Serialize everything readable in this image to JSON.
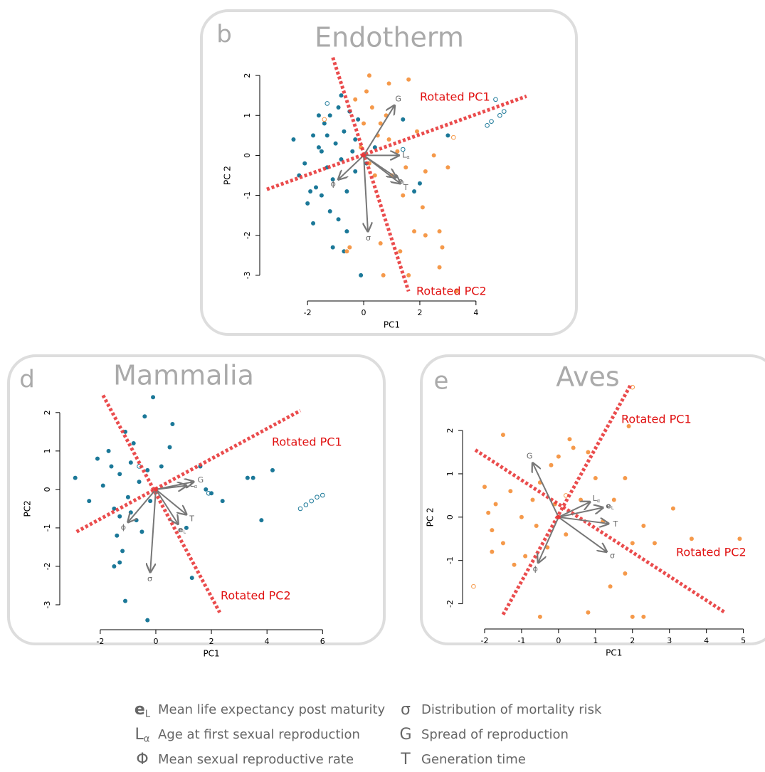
{
  "chart_data": [
    {
      "type": "biplot",
      "panel": "b",
      "title": "Endotherm",
      "xlabel": "PC1",
      "ylabel": "PC 2",
      "xlim": [
        -3.5,
        5.5
      ],
      "ylim": [
        -3.5,
        2.5
      ],
      "xticks": [
        -2,
        0,
        2,
        4
      ],
      "yticks": [
        -3,
        -2,
        -1,
        0,
        1,
        2
      ],
      "series": [
        {
          "color": "#1b7898",
          "filled": true,
          "x": [
            -2.3,
            -2.1,
            -2.0,
            -1.8,
            -1.7,
            -1.6,
            -1.5,
            -1.4,
            -1.3,
            -1.2,
            -1.1,
            -1.0,
            -0.9,
            -0.8,
            -0.7,
            -0.6,
            -0.5,
            -0.4,
            -0.3,
            -0.2,
            -1.9,
            -1.2,
            -0.9,
            -0.6,
            -1.1,
            -0.7,
            -1.5,
            -2.5,
            -0.3,
            0.1,
            0.4,
            1.8,
            1.4,
            -1.8,
            -0.1,
            3.0,
            2.0,
            -1.3,
            -0.8,
            -1.6
          ],
          "y": [
            -0.5,
            -0.2,
            -1.2,
            0.5,
            -0.8,
            0.2,
            -1.0,
            0.8,
            -0.3,
            1.0,
            -0.6,
            0.3,
            1.2,
            -0.1,
            0.6,
            -0.9,
            1.1,
            0.1,
            -0.4,
            0.9,
            -0.9,
            -1.4,
            -1.6,
            -1.9,
            -2.3,
            -2.4,
            0.1,
            0.4,
            0.4,
            -0.2,
            0.2,
            -0.9,
            0.9,
            -1.7,
            -3.0,
            0.5,
            -0.7,
            0.5,
            1.5,
            1.0
          ]
        },
        {
          "color": "#f5994a",
          "filled": true,
          "x": [
            0.1,
            0.3,
            0.6,
            0.9,
            1.2,
            1.5,
            0.2,
            0.5,
            0.8,
            1.0,
            1.4,
            2.1,
            1.8,
            2.2,
            2.7,
            2.8,
            1.3,
            0.6,
            -0.5,
            -0.6,
            0.7,
            1.6,
            2.7,
            3.3,
            0.0,
            -0.3,
            2.5,
            3.0,
            1.9,
            1.6,
            0.2,
            0.9,
            2.2,
            -0.1,
            0.4
          ],
          "y": [
            1.6,
            1.2,
            0.8,
            0.4,
            0.1,
            -0.3,
            -0.2,
            0.5,
            1.0,
            -0.5,
            -1.0,
            -1.3,
            -1.9,
            -2.0,
            -1.9,
            -2.3,
            -2.4,
            -2.2,
            -2.3,
            -2.4,
            -3.0,
            -3.0,
            -2.8,
            -3.4,
            0.8,
            1.4,
            0.0,
            -0.3,
            0.6,
            1.9,
            2.0,
            1.8,
            -0.4,
            0.2,
            -0.5
          ]
        },
        {
          "color": "#1b7898",
          "filled": false,
          "x": [
            4.7,
            5.0,
            4.85,
            4.55,
            4.4,
            1.4,
            -1.3
          ],
          "y": [
            1.4,
            1.1,
            1.0,
            0.85,
            0.75,
            0.15,
            1.3
          ]
        },
        {
          "color": "#f5994a",
          "filled": false,
          "x": [
            3.2,
            -1.4
          ],
          "y": [
            0.45,
            0.9
          ]
        }
      ],
      "arrows": [
        {
          "symbol": "G",
          "x": 1.1,
          "y": 1.25
        },
        {
          "symbol": "L",
          "sub": "α",
          "x": 1.25,
          "y": 0.0
        },
        {
          "symbol": "e",
          "sub": "L",
          "x": 1.15,
          "y": -0.55
        },
        {
          "symbol": "T",
          "x": 1.3,
          "y": -0.7
        },
        {
          "symbol": "ϕ",
          "x": -0.9,
          "y": -0.6
        },
        {
          "symbol": "σ",
          "x": 0.15,
          "y": -1.9
        }
      ],
      "rotated_axes": [
        {
          "label": "Rotated PC1",
          "x": [
            -3.45,
            5.8
          ],
          "y": [
            -0.85,
            1.48
          ]
        },
        {
          "label": "Rotated PC2",
          "x": [
            -1.1,
            1.6
          ],
          "y": [
            2.45,
            -3.4
          ]
        }
      ]
    },
    {
      "type": "biplot",
      "panel": "d",
      "title": "Mammalia",
      "xlabel": "PC1",
      "ylabel": "PC2",
      "xlim": [
        -3.2,
        6.3
      ],
      "ylim": [
        -3.5,
        2.7
      ],
      "xticks": [
        -2,
        0,
        2,
        4,
        6
      ],
      "yticks": [
        -3,
        -2,
        -1,
        0,
        1,
        2
      ],
      "series": [
        {
          "color": "#1b7898",
          "filled": true,
          "x": [
            -2.9,
            -2.4,
            -2.1,
            -1.9,
            -1.7,
            -1.5,
            -1.4,
            -1.3,
            -1.2,
            -1.1,
            -1.0,
            -0.9,
            -0.8,
            -0.7,
            -0.6,
            -0.5,
            -0.4,
            -0.3,
            -0.2,
            -0.1,
            0.2,
            0.5,
            0.6,
            1.1,
            1.6,
            1.8,
            2.4,
            3.3,
            3.5,
            4.2,
            3.8,
            -1.3,
            -1.1,
            -1.3,
            -0.9,
            -1.6,
            -0.3,
            -1.5,
            1.3,
            2.0
          ],
          "y": [
            0.3,
            -0.3,
            0.8,
            0.1,
            1.0,
            -0.5,
            -1.2,
            0.4,
            -1.6,
            1.5,
            -0.2,
            0.7,
            1.2,
            -0.8,
            0.2,
            -1.1,
            1.9,
            0.5,
            -0.3,
            2.4,
            0.6,
            1.1,
            1.7,
            -1.0,
            0.6,
            0.0,
            -0.3,
            0.3,
            0.3,
            0.5,
            -0.8,
            -1.9,
            -2.9,
            -0.7,
            -0.6,
            0.6,
            -3.4,
            -2.0,
            -2.3,
            -0.1
          ]
        },
        {
          "color": "#1b7898",
          "filled": false,
          "x": [
            5.2,
            5.4,
            5.6,
            5.8,
            6.0,
            -0.6,
            1.9
          ],
          "y": [
            -0.5,
            -0.4,
            -0.3,
            -0.2,
            -0.15,
            0.6,
            -0.1
          ]
        }
      ],
      "arrows": [
        {
          "symbol": "G",
          "x": 1.36,
          "y": 0.2
        },
        {
          "symbol": "L",
          "sub": "α",
          "x": 1.1,
          "y": 0.1
        },
        {
          "symbol": "e",
          "sub": "L",
          "x": 0.8,
          "y": -0.9
        },
        {
          "symbol": "T",
          "x": 1.1,
          "y": -0.65
        },
        {
          "symbol": "ϕ",
          "x": -1.0,
          "y": -0.85
        },
        {
          "symbol": "σ",
          "x": -0.2,
          "y": -2.15
        }
      ],
      "rotated_axes": [
        {
          "label": "Rotated PC1",
          "x": [
            -2.85,
            5.2
          ],
          "y": [
            -1.1,
            2.05
          ]
        },
        {
          "label": "Rotated PC2",
          "x": [
            -1.9,
            2.3
          ],
          "y": [
            2.45,
            -3.2
          ]
        }
      ]
    },
    {
      "type": "biplot",
      "panel": "e",
      "title": "Aves",
      "xlabel": "PC1",
      "ylabel": "PC 2",
      "xlim": [
        -2.5,
        5.2
      ],
      "ylim": [
        -2.5,
        3.2
      ],
      "xticks": [
        -2,
        -1,
        0,
        1,
        2,
        3,
        4,
        5
      ],
      "yticks": [
        -2,
        -1,
        0,
        1,
        2
      ],
      "series": [
        {
          "color": "#f5994a",
          "filled": true,
          "x": [
            -2.0,
            -1.9,
            -1.8,
            -1.7,
            -1.5,
            -1.3,
            -1.2,
            -1.0,
            -0.9,
            -0.7,
            -0.6,
            -0.5,
            -0.3,
            -0.2,
            -0.1,
            0.0,
            0.2,
            0.4,
            0.6,
            0.8,
            1.0,
            1.2,
            1.4,
            1.5,
            1.8,
            2.0,
            2.3,
            2.6,
            3.1,
            3.6,
            4.9,
            1.9,
            2.0,
            2.3,
            0.8,
            -0.5,
            -1.5,
            -1.8,
            0.3,
            1.8
          ],
          "y": [
            0.7,
            0.1,
            -0.3,
            0.3,
            -0.6,
            0.6,
            -1.1,
            0.0,
            -0.9,
            0.4,
            -0.2,
            0.8,
            -0.7,
            1.2,
            0.3,
            1.4,
            -0.4,
            1.6,
            0.4,
            1.5,
            0.9,
            -0.1,
            -1.6,
            0.4,
            0.9,
            -0.6,
            -0.2,
            -0.6,
            0.2,
            -0.5,
            -0.5,
            2.1,
            -2.3,
            -2.3,
            -2.2,
            -2.3,
            1.9,
            -0.8,
            1.8,
            -1.3
          ]
        },
        {
          "color": "#f5994a",
          "filled": false,
          "x": [
            -2.3,
            0.2,
            2.0
          ],
          "y": [
            -1.6,
            0.5,
            3.0
          ]
        }
      ],
      "arrows": [
        {
          "symbol": "G",
          "x": -0.7,
          "y": 1.25
        },
        {
          "symbol": "L",
          "sub": "α",
          "x": 0.85,
          "y": 0.35
        },
        {
          "symbol": "e",
          "sub": "L",
          "x": 1.2,
          "y": 0.22
        },
        {
          "symbol": "T",
          "x": 1.35,
          "y": -0.15
        },
        {
          "symbol": "ϕ",
          "x": -0.55,
          "y": -1.05
        },
        {
          "symbol": "σ",
          "x": 1.3,
          "y": -0.8
        }
      ],
      "rotated_axes": [
        {
          "label": "Rotated PC1",
          "x": [
            -1.5,
            1.95
          ],
          "y": [
            -2.25,
            3.05
          ]
        },
        {
          "label": "Rotated PC2",
          "x": [
            -2.25,
            4.5
          ],
          "y": [
            1.55,
            -2.2
          ]
        }
      ]
    }
  ],
  "legend": [
    {
      "symbol": "e",
      "sub": "L",
      "text": "Mean life expectancy post maturity"
    },
    {
      "symbol": "σ",
      "text": "Distribution of mortality risk"
    },
    {
      "symbol": "L",
      "sub": "α",
      "text": "Age at first sexual reproduction"
    },
    {
      "symbol": "G",
      "text": "Spread of reproduction"
    },
    {
      "symbol": "Φ",
      "text": "Mean sexual reproductive rate"
    },
    {
      "symbol": "T",
      "text": "Generation time"
    }
  ]
}
